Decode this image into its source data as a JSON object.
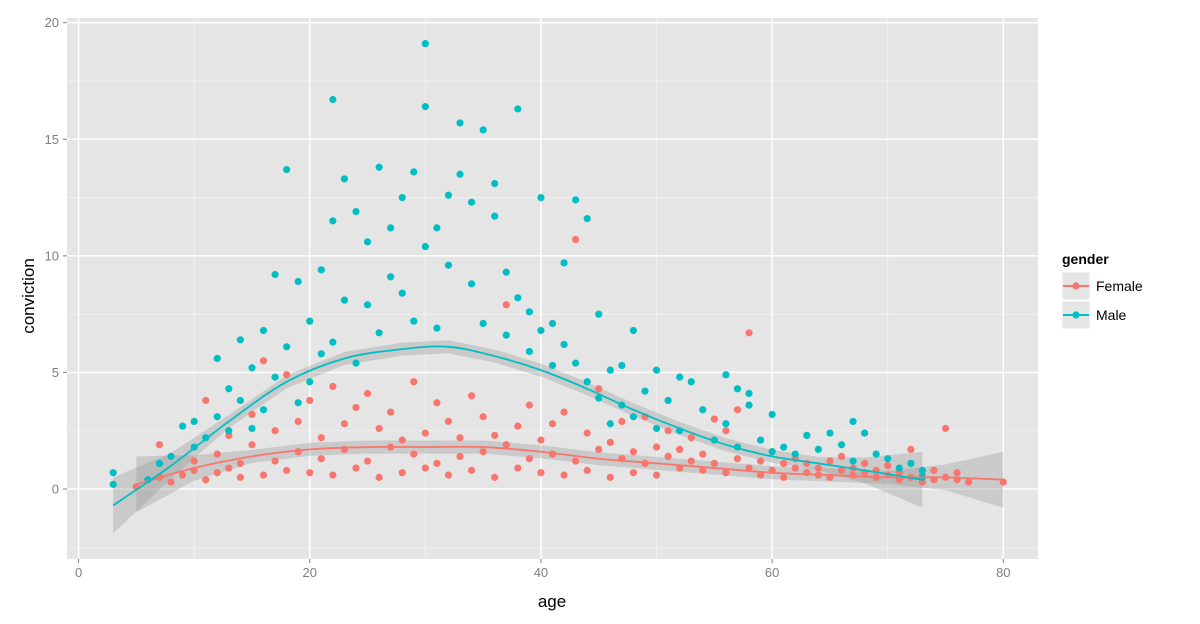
{
  "chart_data": {
    "type": "scatter",
    "xlabel": "age",
    "ylabel": "conviction",
    "xlim": [
      -1,
      83
    ],
    "ylim": [
      -3,
      20.2
    ],
    "x_ticks": [
      0,
      20,
      40,
      60,
      80
    ],
    "y_ticks": [
      0,
      5,
      10,
      15,
      20
    ],
    "x_tick_labels": [
      "0",
      "20",
      "40",
      "60",
      "80"
    ],
    "y_tick_labels": [
      "0",
      "5",
      "10",
      "15",
      "20"
    ],
    "grid": true,
    "legend": {
      "title": "gender",
      "position": "right"
    },
    "series": [
      {
        "name": "Female",
        "color": "#F8766D",
        "points": [
          [
            5,
            0.1
          ],
          [
            6,
            0.4
          ],
          [
            7,
            1.9
          ],
          [
            7,
            0.5
          ],
          [
            8,
            0.3
          ],
          [
            9,
            0.6
          ],
          [
            10,
            0.8
          ],
          [
            10,
            1.2
          ],
          [
            11,
            3.8
          ],
          [
            11,
            0.4
          ],
          [
            12,
            0.7
          ],
          [
            12,
            1.5
          ],
          [
            13,
            0.9
          ],
          [
            13,
            2.3
          ],
          [
            14,
            1.1
          ],
          [
            14,
            0.5
          ],
          [
            15,
            1.9
          ],
          [
            15,
            3.2
          ],
          [
            16,
            5.5
          ],
          [
            16,
            0.6
          ],
          [
            17,
            1.2
          ],
          [
            17,
            2.5
          ],
          [
            18,
            4.9
          ],
          [
            18,
            0.8
          ],
          [
            19,
            1.6
          ],
          [
            19,
            2.9
          ],
          [
            20,
            0.7
          ],
          [
            20,
            3.8
          ],
          [
            21,
            1.3
          ],
          [
            21,
            2.2
          ],
          [
            22,
            4.4
          ],
          [
            22,
            0.6
          ],
          [
            23,
            1.7
          ],
          [
            23,
            2.8
          ],
          [
            24,
            3.5
          ],
          [
            24,
            0.9
          ],
          [
            25,
            1.2
          ],
          [
            25,
            4.1
          ],
          [
            26,
            2.6
          ],
          [
            26,
            0.5
          ],
          [
            27,
            1.8
          ],
          [
            27,
            3.3
          ],
          [
            28,
            2.1
          ],
          [
            28,
            0.7
          ],
          [
            29,
            1.5
          ],
          [
            29,
            4.6
          ],
          [
            30,
            2.4
          ],
          [
            30,
            0.9
          ],
          [
            31,
            1.1
          ],
          [
            31,
            3.7
          ],
          [
            32,
            2.9
          ],
          [
            32,
            0.6
          ],
          [
            33,
            1.4
          ],
          [
            33,
            2.2
          ],
          [
            34,
            4.0
          ],
          [
            34,
            0.8
          ],
          [
            35,
            1.6
          ],
          [
            35,
            3.1
          ],
          [
            36,
            2.3
          ],
          [
            36,
            0.5
          ],
          [
            37,
            1.9
          ],
          [
            37,
            7.9
          ],
          [
            38,
            2.7
          ],
          [
            38,
            0.9
          ],
          [
            39,
            1.3
          ],
          [
            39,
            3.6
          ],
          [
            40,
            2.1
          ],
          [
            40,
            0.7
          ],
          [
            41,
            1.5
          ],
          [
            41,
            2.8
          ],
          [
            42,
            3.3
          ],
          [
            42,
            0.6
          ],
          [
            43,
            10.7
          ],
          [
            43,
            1.2
          ],
          [
            44,
            2.4
          ],
          [
            44,
            0.8
          ],
          [
            45,
            1.7
          ],
          [
            45,
            4.3
          ],
          [
            46,
            2.0
          ],
          [
            46,
            0.5
          ],
          [
            47,
            1.3
          ],
          [
            47,
            2.9
          ],
          [
            48,
            1.6
          ],
          [
            48,
            0.7
          ],
          [
            49,
            1.1
          ],
          [
            49,
            3.1
          ],
          [
            50,
            1.8
          ],
          [
            50,
            0.6
          ],
          [
            51,
            1.4
          ],
          [
            51,
            2.5
          ],
          [
            52,
            0.9
          ],
          [
            52,
            1.7
          ],
          [
            53,
            1.2
          ],
          [
            53,
            2.2
          ],
          [
            54,
            0.8
          ],
          [
            54,
            1.5
          ],
          [
            55,
            1.1
          ],
          [
            55,
            3.0
          ],
          [
            56,
            0.7
          ],
          [
            56,
            2.5
          ],
          [
            57,
            1.3
          ],
          [
            57,
            3.4
          ],
          [
            58,
            6.7
          ],
          [
            58,
            0.9
          ],
          [
            59,
            1.2
          ],
          [
            59,
            0.6
          ],
          [
            60,
            1.6
          ],
          [
            60,
            0.8
          ],
          [
            61,
            1.1
          ],
          [
            61,
            0.5
          ],
          [
            62,
            0.9
          ],
          [
            62,
            1.3
          ],
          [
            63,
            0.7
          ],
          [
            63,
            1.1
          ],
          [
            64,
            0.6
          ],
          [
            64,
            0.9
          ],
          [
            65,
            1.2
          ],
          [
            65,
            0.5
          ],
          [
            66,
            0.8
          ],
          [
            66,
            1.4
          ],
          [
            67,
            0.6
          ],
          [
            67,
            0.9
          ],
          [
            68,
            0.7
          ],
          [
            68,
            1.1
          ],
          [
            69,
            0.5
          ],
          [
            69,
            0.8
          ],
          [
            70,
            0.6
          ],
          [
            70,
            1.0
          ],
          [
            71,
            0.4
          ],
          [
            71,
            0.7
          ],
          [
            72,
            1.7
          ],
          [
            72,
            0.5
          ],
          [
            73,
            0.6
          ],
          [
            73,
            0.3
          ],
          [
            74,
            0.8
          ],
          [
            74,
            0.4
          ],
          [
            75,
            2.6
          ],
          [
            75,
            0.5
          ],
          [
            76,
            0.7
          ],
          [
            76,
            0.4
          ],
          [
            77,
            0.3
          ],
          [
            80,
            0.3
          ]
        ],
        "smooth": [
          [
            5,
            0.2
          ],
          [
            10,
            0.9
          ],
          [
            15,
            1.4
          ],
          [
            20,
            1.7
          ],
          [
            25,
            1.8
          ],
          [
            30,
            1.8
          ],
          [
            35,
            1.8
          ],
          [
            40,
            1.6
          ],
          [
            45,
            1.3
          ],
          [
            50,
            1.1
          ],
          [
            55,
            0.9
          ],
          [
            60,
            0.7
          ],
          [
            65,
            0.6
          ],
          [
            70,
            0.5
          ],
          [
            75,
            0.5
          ],
          [
            80,
            0.4
          ]
        ]
      },
      {
        "name": "Male",
        "color": "#00BFC4",
        "points": [
          [
            3,
            0.2
          ],
          [
            3,
            0.7
          ],
          [
            6,
            0.4
          ],
          [
            7,
            1.1
          ],
          [
            8,
            1.4
          ],
          [
            9,
            2.7
          ],
          [
            10,
            1.8
          ],
          [
            10,
            2.9
          ],
          [
            11,
            2.2
          ],
          [
            12,
            5.6
          ],
          [
            12,
            3.1
          ],
          [
            13,
            2.5
          ],
          [
            13,
            4.3
          ],
          [
            14,
            6.4
          ],
          [
            14,
            3.8
          ],
          [
            15,
            2.6
          ],
          [
            15,
            5.2
          ],
          [
            16,
            3.4
          ],
          [
            16,
            6.8
          ],
          [
            17,
            9.2
          ],
          [
            17,
            4.8
          ],
          [
            18,
            13.7
          ],
          [
            18,
            6.1
          ],
          [
            19,
            8.9
          ],
          [
            19,
            3.7
          ],
          [
            20,
            7.2
          ],
          [
            20,
            4.6
          ],
          [
            21,
            5.8
          ],
          [
            21,
            9.4
          ],
          [
            22,
            16.7
          ],
          [
            22,
            11.5
          ],
          [
            22,
            6.3
          ],
          [
            23,
            8.1
          ],
          [
            23,
            13.3
          ],
          [
            24,
            11.9
          ],
          [
            24,
            5.4
          ],
          [
            25,
            10.6
          ],
          [
            25,
            7.9
          ],
          [
            26,
            13.8
          ],
          [
            26,
            6.7
          ],
          [
            27,
            11.2
          ],
          [
            27,
            9.1
          ],
          [
            28,
            12.5
          ],
          [
            28,
            8.4
          ],
          [
            29,
            13.6
          ],
          [
            29,
            7.2
          ],
          [
            30,
            19.1
          ],
          [
            30,
            16.4
          ],
          [
            30,
            10.4
          ],
          [
            31,
            11.2
          ],
          [
            31,
            6.9
          ],
          [
            32,
            9.6
          ],
          [
            32,
            12.6
          ],
          [
            33,
            15.7
          ],
          [
            33,
            13.5
          ],
          [
            34,
            12.3
          ],
          [
            34,
            8.8
          ],
          [
            35,
            15.4
          ],
          [
            35,
            7.1
          ],
          [
            36,
            13.1
          ],
          [
            36,
            11.7
          ],
          [
            37,
            9.3
          ],
          [
            37,
            6.6
          ],
          [
            38,
            16.3
          ],
          [
            38,
            8.2
          ],
          [
            39,
            7.6
          ],
          [
            39,
            5.9
          ],
          [
            40,
            12.5
          ],
          [
            40,
            6.8
          ],
          [
            41,
            5.3
          ],
          [
            41,
            7.1
          ],
          [
            42,
            9.7
          ],
          [
            42,
            6.2
          ],
          [
            43,
            12.4
          ],
          [
            43,
            5.4
          ],
          [
            44,
            11.6
          ],
          [
            44,
            4.6
          ],
          [
            45,
            7.5
          ],
          [
            45,
            3.9
          ],
          [
            46,
            5.1
          ],
          [
            46,
            2.8
          ],
          [
            47,
            5.3
          ],
          [
            47,
            3.6
          ],
          [
            48,
            6.8
          ],
          [
            48,
            3.1
          ],
          [
            49,
            4.2
          ],
          [
            50,
            5.1
          ],
          [
            50,
            2.6
          ],
          [
            51,
            3.8
          ],
          [
            52,
            4.8
          ],
          [
            52,
            2.5
          ],
          [
            53,
            4.6
          ],
          [
            54,
            3.4
          ],
          [
            55,
            2.1
          ],
          [
            56,
            4.9
          ],
          [
            56,
            2.8
          ],
          [
            57,
            4.3
          ],
          [
            57,
            1.8
          ],
          [
            58,
            4.1
          ],
          [
            58,
            3.6
          ],
          [
            59,
            2.1
          ],
          [
            60,
            3.2
          ],
          [
            60,
            1.6
          ],
          [
            61,
            1.8
          ],
          [
            62,
            1.5
          ],
          [
            63,
            2.3
          ],
          [
            64,
            1.7
          ],
          [
            65,
            2.4
          ],
          [
            66,
            1.9
          ],
          [
            67,
            2.9
          ],
          [
            67,
            1.2
          ],
          [
            68,
            2.4
          ],
          [
            69,
            1.5
          ],
          [
            70,
            1.3
          ],
          [
            71,
            0.9
          ],
          [
            72,
            1.1
          ],
          [
            73,
            0.8
          ],
          [
            73,
            0.5
          ]
        ],
        "smooth": [
          [
            3,
            -0.7
          ],
          [
            8,
            1.0
          ],
          [
            13,
            2.9
          ],
          [
            18,
            4.6
          ],
          [
            23,
            5.6
          ],
          [
            28,
            6.0
          ],
          [
            32,
            6.1
          ],
          [
            36,
            5.7
          ],
          [
            40,
            5.1
          ],
          [
            44,
            4.3
          ],
          [
            48,
            3.4
          ],
          [
            52,
            2.6
          ],
          [
            56,
            1.9
          ],
          [
            60,
            1.4
          ],
          [
            64,
            1.1
          ],
          [
            68,
            0.8
          ],
          [
            73,
            0.4
          ]
        ]
      }
    ]
  }
}
